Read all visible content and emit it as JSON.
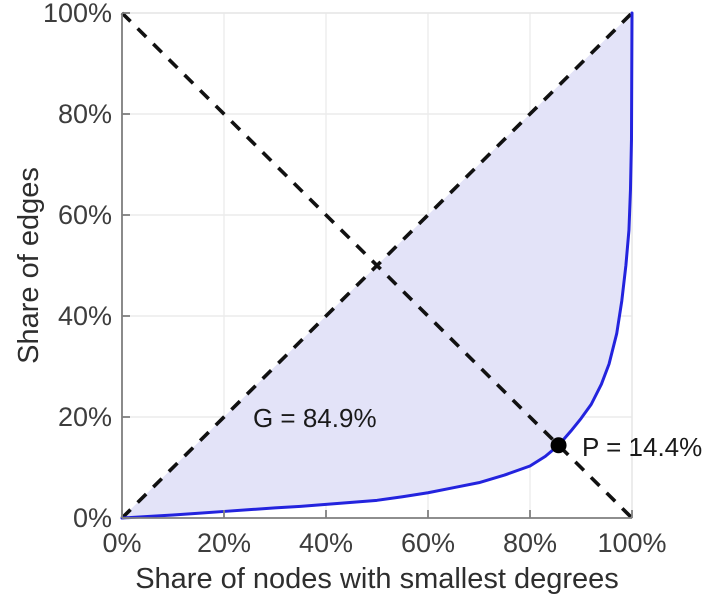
{
  "chart_data": {
    "type": "area",
    "title": "",
    "xlabel": "Share of nodes with smallest degrees",
    "ylabel": "Share of edges",
    "xlim": [
      0,
      100
    ],
    "ylim": [
      0,
      100
    ],
    "grid": true,
    "legend": "none",
    "x_ticks": [
      0,
      20,
      40,
      60,
      80,
      100
    ],
    "y_ticks": [
      0,
      20,
      40,
      60,
      80,
      100
    ],
    "x_tick_labels": [
      "0%",
      "20%",
      "40%",
      "60%",
      "80%",
      "100%"
    ],
    "y_tick_labels": [
      "0%",
      "20%",
      "40%",
      "60%",
      "80%",
      "100%"
    ],
    "series": [
      {
        "name": "lorenz-curve",
        "type": "line",
        "color": "#2323de",
        "fill_to_diagonal": true,
        "fill_color": "#e3e3f8",
        "points": [
          [
            0,
            0
          ],
          [
            5,
            0.3
          ],
          [
            10,
            0.6
          ],
          [
            15,
            0.95
          ],
          [
            20,
            1.3
          ],
          [
            25,
            1.65
          ],
          [
            30,
            2.0
          ],
          [
            35,
            2.3
          ],
          [
            40,
            2.7
          ],
          [
            45,
            3.1
          ],
          [
            50,
            3.5
          ],
          [
            55,
            4.2
          ],
          [
            60,
            5.0
          ],
          [
            65,
            6.0
          ],
          [
            70,
            7.0
          ],
          [
            75,
            8.5
          ],
          [
            80,
            10.3
          ],
          [
            83,
            12.2
          ],
          [
            85.6,
            14.4
          ],
          [
            88,
            17.2
          ],
          [
            90,
            19.7
          ],
          [
            92,
            22.5
          ],
          [
            94,
            26.5
          ],
          [
            95.5,
            30.5
          ],
          [
            97,
            36.5
          ],
          [
            98,
            43.0
          ],
          [
            98.8,
            50.0
          ],
          [
            99.4,
            57.0
          ],
          [
            99.7,
            65.0
          ],
          [
            99.9,
            75.0
          ],
          [
            100,
            100
          ]
        ]
      },
      {
        "name": "equality-diagonal",
        "type": "line",
        "style": "dashed",
        "color": "#111111",
        "points": [
          [
            0,
            0
          ],
          [
            100,
            100
          ]
        ]
      },
      {
        "name": "anti-diagonal",
        "type": "line",
        "style": "dashed",
        "color": "#111111",
        "points": [
          [
            0,
            100
          ],
          [
            100,
            0
          ]
        ]
      }
    ],
    "annotations": {
      "gini": {
        "text": "G = 84.9%",
        "x": 37.8,
        "y": 19.8,
        "anchor": "middle"
      },
      "pareto": {
        "text": "P = 14.4%",
        "label_x": 90.2,
        "label_y": 14.1,
        "anchor": "start",
        "marker": {
          "shape": "dot",
          "x": 85.6,
          "y": 14.4,
          "color": "#000000"
        }
      }
    },
    "colors": {
      "grid": "#ececec",
      "border": "#e7e7e7",
      "axis": "#7f7f7f"
    }
  }
}
